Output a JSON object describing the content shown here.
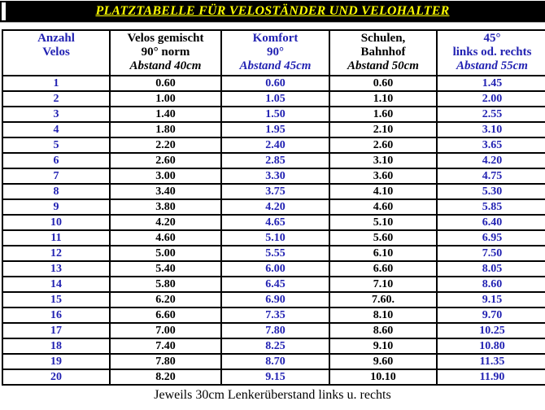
{
  "title_bar": {
    "text": "PLATZTABELLE FÜR VELOSTÄNDER UND VELOHALTER"
  },
  "colors": {
    "accent_blue": "#2222b2",
    "title_bg": "#000000",
    "title_fg": "#ffff00"
  },
  "table": {
    "columns": [
      {
        "id": "anzahl-velos",
        "lines": [
          "Anzahl",
          "Velos",
          ""
        ],
        "color": "blue"
      },
      {
        "id": "gemischt-90",
        "lines": [
          "Velos gemischt",
          "90° norm",
          "Abstand 40cm"
        ],
        "color": "black"
      },
      {
        "id": "komfort-90",
        "lines": [
          "Komfort",
          "90°",
          "Abstand 45cm"
        ],
        "color": "blue"
      },
      {
        "id": "schulen-bahnhof",
        "lines": [
          "Schulen,",
          "Bahnhof",
          "Abstand 50cm"
        ],
        "color": "black"
      },
      {
        "id": "45-grad",
        "lines": [
          "45°",
          "links od. rechts",
          "Abstand 55cm"
        ],
        "color": "blue"
      }
    ],
    "rows": [
      [
        "1",
        "0.60",
        "0.60",
        "0.60",
        "1.45"
      ],
      [
        "2",
        "1.00",
        "1.05",
        "1.10",
        "2.00"
      ],
      [
        "3",
        "1.40",
        "1.50",
        "1.60",
        "2.55"
      ],
      [
        "4",
        "1.80",
        "1.95",
        "2.10",
        "3.10"
      ],
      [
        "5",
        "2.20",
        "2.40",
        "2.60",
        "3.65"
      ],
      [
        "6",
        "2.60",
        "2.85",
        "3.10",
        "4.20"
      ],
      [
        "7",
        "3.00",
        "3.30",
        "3.60",
        "4.75"
      ],
      [
        "8",
        "3.40",
        "3.75",
        "4.10",
        "5.30"
      ],
      [
        "9",
        "3.80",
        "4.20",
        "4.60",
        "5.85"
      ],
      [
        "10",
        "4.20",
        "4.65",
        "5.10",
        "6.40"
      ],
      [
        "11",
        "4.60",
        "5.10",
        "5.60",
        "6.95"
      ],
      [
        "12",
        "5.00",
        "5.55",
        "6.10",
        "7.50"
      ],
      [
        "13",
        "5.40",
        "6.00",
        "6.60",
        "8.05"
      ],
      [
        "14",
        "5.80",
        "6.45",
        "7.10",
        "8.60"
      ],
      [
        "15",
        "6.20",
        "6.90",
        "7.60.",
        "9.15"
      ],
      [
        "16",
        "6.60",
        "7.35",
        "8.10",
        "9.70"
      ],
      [
        "17",
        "7.00",
        "7.80",
        "8.60",
        "10.25"
      ],
      [
        "18",
        "7.40",
        "8.25",
        "9.10",
        "10.80"
      ],
      [
        "19",
        "7.80",
        "8.70",
        "9.60",
        "11.35"
      ],
      [
        "20",
        "8.20",
        "9.15",
        "10.10",
        "11.90"
      ]
    ],
    "column_colors": [
      "blue",
      "black",
      "blue",
      "black",
      "blue"
    ]
  },
  "footer": {
    "note": "Jeweils 30cm Lenkerüberstand links u. rechts"
  }
}
